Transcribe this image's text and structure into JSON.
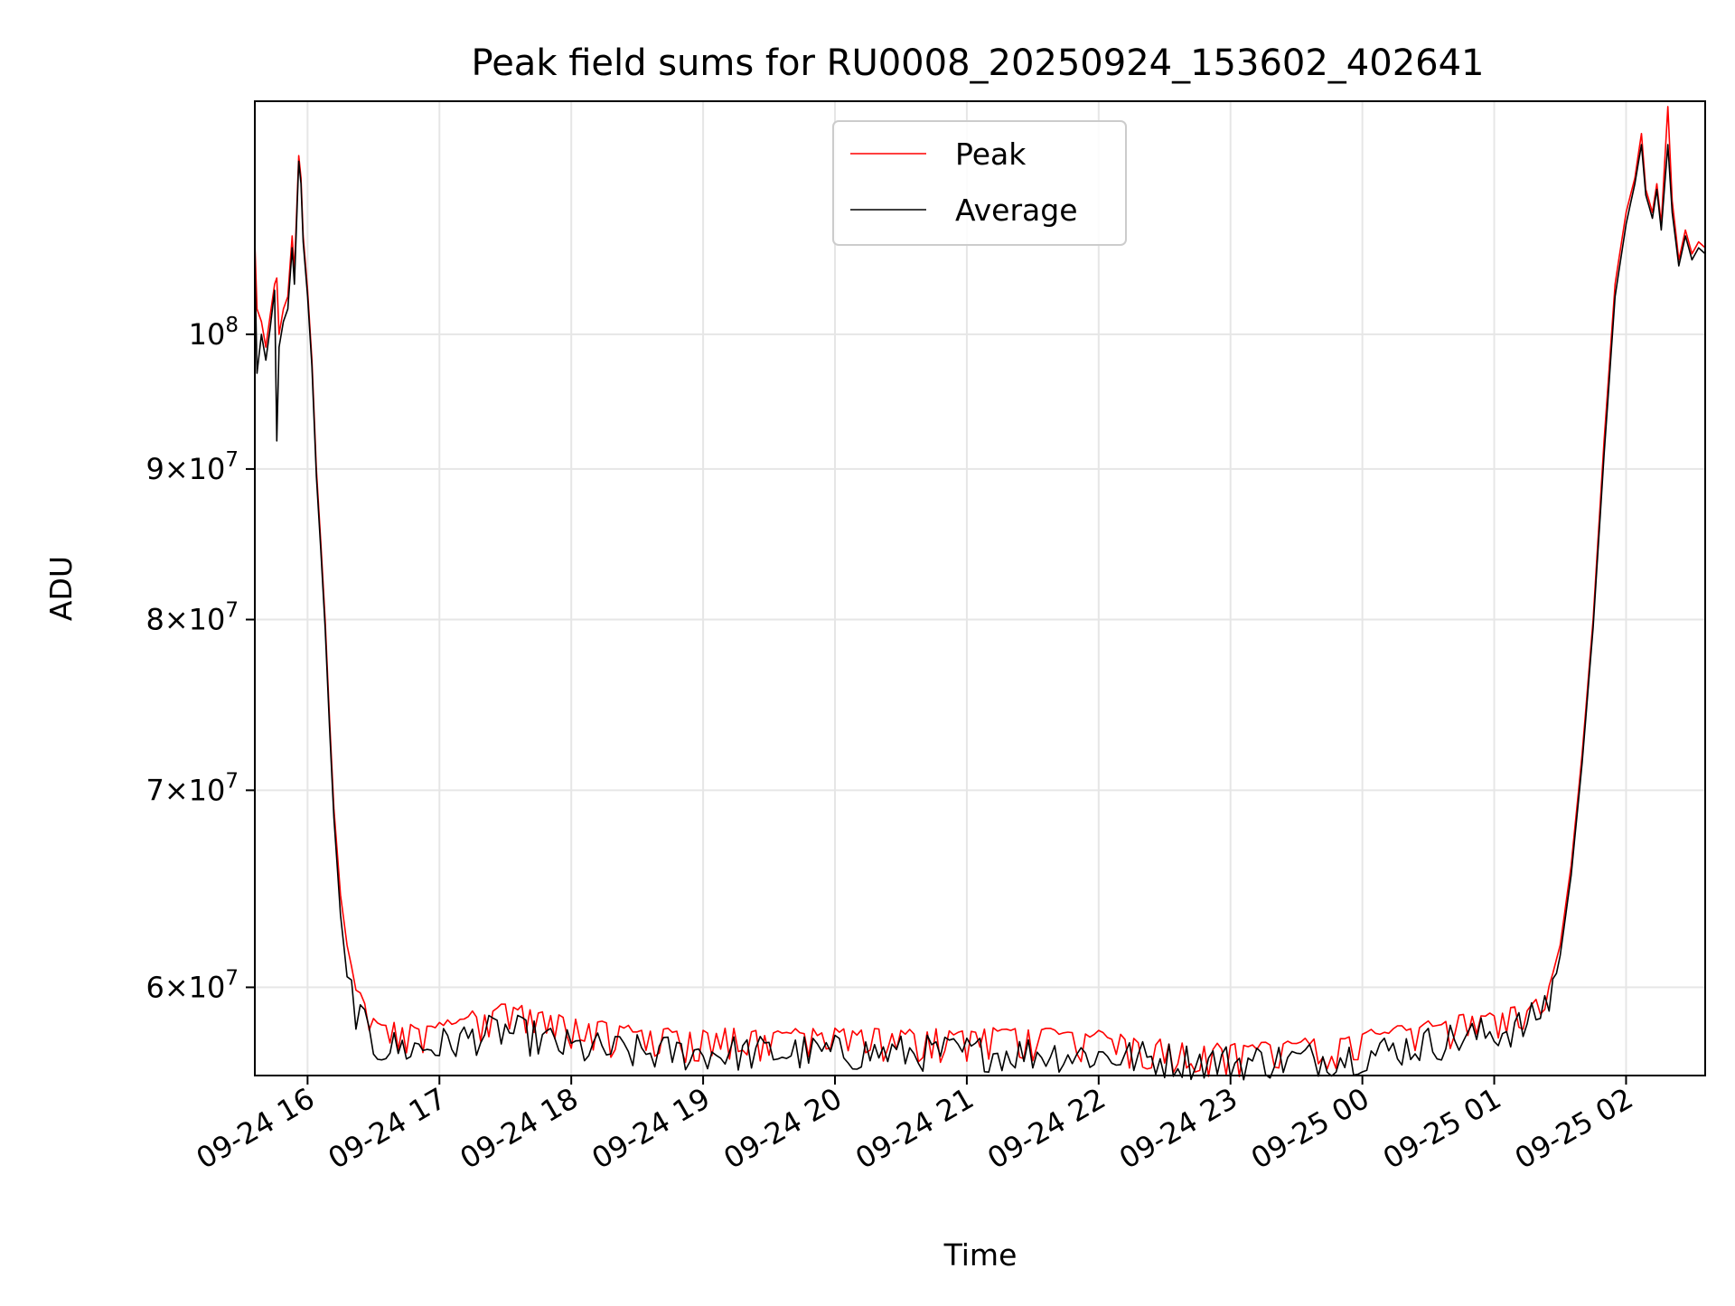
{
  "chart_data": {
    "type": "line",
    "title": "Peak field sums for RU0008_20250924_153602_402641",
    "xlabel": "Time",
    "ylabel": "ADU",
    "y_scale": "log",
    "grid": true,
    "legend_position": "top-center",
    "xlim": [
      "2025-09-24 15:36",
      "2025-09-25 02:36"
    ],
    "ylim": [
      56000000,
      120000000
    ],
    "x_ticks": [
      {
        "value": "2025-09-24 16:00",
        "label": "09-24 16"
      },
      {
        "value": "2025-09-24 17:00",
        "label": "09-24 17"
      },
      {
        "value": "2025-09-24 18:00",
        "label": "09-24 18"
      },
      {
        "value": "2025-09-24 19:00",
        "label": "09-24 19"
      },
      {
        "value": "2025-09-24 20:00",
        "label": "09-24 20"
      },
      {
        "value": "2025-09-24 21:00",
        "label": "09-24 21"
      },
      {
        "value": "2025-09-24 22:00",
        "label": "09-24 22"
      },
      {
        "value": "2025-09-24 23:00",
        "label": "09-24 23"
      },
      {
        "value": "2025-09-25 00:00",
        "label": "09-25 00"
      },
      {
        "value": "2025-09-25 01:00",
        "label": "09-25 01"
      },
      {
        "value": "2025-09-25 02:00",
        "label": "09-25 02"
      }
    ],
    "y_ticks": [
      {
        "value": 60000000,
        "mantissa": "6",
        "exponent": "7"
      },
      {
        "value": 70000000,
        "mantissa": "7",
        "exponent": "7"
      },
      {
        "value": 80000000,
        "mantissa": "8",
        "exponent": "7"
      },
      {
        "value": 90000000,
        "mantissa": "9",
        "exponent": "7"
      },
      {
        "value": 100000000,
        "mantissa": "",
        "exponent": "8"
      }
    ],
    "series": [
      {
        "name": "Peak",
        "color": "#ff0000",
        "points": [
          [
            "2025-09-24 15:36",
            107500000
          ],
          [
            "2025-09-24 15:37",
            102000000
          ],
          [
            "2025-09-24 15:39",
            101000000
          ],
          [
            "2025-09-24 15:41",
            99000000
          ],
          [
            "2025-09-24 15:43",
            101500000
          ],
          [
            "2025-09-24 15:45",
            104000000
          ],
          [
            "2025-09-24 15:46",
            104500000
          ],
          [
            "2025-09-24 15:47",
            100000000
          ],
          [
            "2025-09-24 15:49",
            102000000
          ],
          [
            "2025-09-24 15:51",
            103000000
          ],
          [
            "2025-09-24 15:53",
            108000000
          ],
          [
            "2025-09-24 15:54",
            105000000
          ],
          [
            "2025-09-24 15:56",
            115000000
          ],
          [
            "2025-09-24 15:57",
            113000000
          ],
          [
            "2025-09-24 15:58",
            108000000
          ],
          [
            "2025-09-24 16:00",
            103500000
          ],
          [
            "2025-09-24 16:02",
            98000000
          ],
          [
            "2025-09-24 16:04",
            90000000
          ],
          [
            "2025-09-24 16:06",
            85000000
          ],
          [
            "2025-09-24 16:08",
            80000000
          ],
          [
            "2025-09-24 16:10",
            74000000
          ],
          [
            "2025-09-24 16:12",
            69000000
          ],
          [
            "2025-09-24 16:15",
            64500000
          ],
          [
            "2025-09-24 16:18",
            62000000
          ],
          [
            "2025-09-24 16:22",
            60000000
          ],
          [
            "2025-09-24 16:30",
            58500000
          ],
          [
            "2025-09-24 16:45",
            58200000
          ],
          [
            "2025-09-24 17:00",
            58300000
          ],
          [
            "2025-09-24 17:15",
            58800000
          ],
          [
            "2025-09-24 17:30",
            59200000
          ],
          [
            "2025-09-24 17:45",
            58900000
          ],
          [
            "2025-09-24 18:00",
            58500000
          ],
          [
            "2025-09-24 18:30",
            58100000
          ],
          [
            "2025-09-24 19:00",
            58000000
          ],
          [
            "2025-09-24 19:30",
            58000000
          ],
          [
            "2025-09-24 20:00",
            58000000
          ],
          [
            "2025-09-24 20:30",
            58000000
          ],
          [
            "2025-09-24 21:00",
            58000000
          ],
          [
            "2025-09-24 21:30",
            58100000
          ],
          [
            "2025-09-24 22:00",
            57900000
          ],
          [
            "2025-09-24 22:30",
            57500000
          ],
          [
            "2025-09-24 23:00",
            57300000
          ],
          [
            "2025-09-24 23:30",
            57500000
          ],
          [
            "2025-09-25 00:00",
            57900000
          ],
          [
            "2025-09-25 00:30",
            58400000
          ],
          [
            "2025-09-25 01:00",
            58900000
          ],
          [
            "2025-09-25 01:15",
            59100000
          ],
          [
            "2025-09-25 01:25",
            60000000
          ],
          [
            "2025-09-25 01:30",
            62000000
          ],
          [
            "2025-09-25 01:35",
            66000000
          ],
          [
            "2025-09-25 01:40",
            72000000
          ],
          [
            "2025-09-25 01:45",
            80000000
          ],
          [
            "2025-09-25 01:50",
            92000000
          ],
          [
            "2025-09-25 01:55",
            104000000
          ],
          [
            "2025-09-25 02:00",
            110000000
          ],
          [
            "2025-09-25 02:04",
            113000000
          ],
          [
            "2025-09-25 02:07",
            117000000
          ],
          [
            "2025-09-25 02:09",
            112000000
          ],
          [
            "2025-09-25 02:12",
            110000000
          ],
          [
            "2025-09-25 02:14",
            112500000
          ],
          [
            "2025-09-25 02:16",
            109000000
          ],
          [
            "2025-09-25 02:19",
            119500000
          ],
          [
            "2025-09-25 02:21",
            111000000
          ],
          [
            "2025-09-25 02:24",
            106000000
          ],
          [
            "2025-09-25 02:27",
            108500000
          ],
          [
            "2025-09-25 02:30",
            106500000
          ],
          [
            "2025-09-25 02:33",
            107500000
          ],
          [
            "2025-09-25 02:36",
            107000000
          ]
        ]
      },
      {
        "name": "Average",
        "color": "#000000",
        "points": [
          [
            "2025-09-24 15:36",
            106000000
          ],
          [
            "2025-09-24 15:37",
            97000000
          ],
          [
            "2025-09-24 15:39",
            100000000
          ],
          [
            "2025-09-24 15:41",
            98000000
          ],
          [
            "2025-09-24 15:43",
            100500000
          ],
          [
            "2025-09-24 15:45",
            103500000
          ],
          [
            "2025-09-24 15:46",
            92000000
          ],
          [
            "2025-09-24 15:47",
            99000000
          ],
          [
            "2025-09-24 15:49",
            101000000
          ],
          [
            "2025-09-24 15:51",
            102000000
          ],
          [
            "2025-09-24 15:53",
            107000000
          ],
          [
            "2025-09-24 15:54",
            104000000
          ],
          [
            "2025-09-24 15:56",
            114500000
          ],
          [
            "2025-09-24 15:57",
            112500000
          ],
          [
            "2025-09-24 15:58",
            107500000
          ],
          [
            "2025-09-24 16:00",
            103000000
          ],
          [
            "2025-09-24 16:02",
            97500000
          ],
          [
            "2025-09-24 16:04",
            89500000
          ],
          [
            "2025-09-24 16:06",
            84500000
          ],
          [
            "2025-09-24 16:08",
            79500000
          ],
          [
            "2025-09-24 16:10",
            73500000
          ],
          [
            "2025-09-24 16:12",
            68500000
          ],
          [
            "2025-09-24 16:15",
            63500000
          ],
          [
            "2025-09-24 16:18",
            60500000
          ],
          [
            "2025-09-24 16:22",
            58500000
          ],
          [
            "2025-09-24 16:30",
            56900000
          ],
          [
            "2025-09-24 16:45",
            56800000
          ],
          [
            "2025-09-24 17:00",
            56900000
          ],
          [
            "2025-09-24 17:15",
            57300000
          ],
          [
            "2025-09-24 17:30",
            57600000
          ],
          [
            "2025-09-24 17:45",
            57200000
          ],
          [
            "2025-09-24 18:00",
            56800000
          ],
          [
            "2025-09-24 18:30",
            56600000
          ],
          [
            "2025-09-24 19:00",
            56600000
          ],
          [
            "2025-09-24 19:30",
            56600000
          ],
          [
            "2025-09-24 20:00",
            56600000
          ],
          [
            "2025-09-24 20:30",
            56600000
          ],
          [
            "2025-09-24 21:00",
            56600000
          ],
          [
            "2025-09-24 21:30",
            56600000
          ],
          [
            "2025-09-24 22:00",
            56500000
          ],
          [
            "2025-09-24 22:30",
            56300000
          ],
          [
            "2025-09-24 23:00",
            56200000
          ],
          [
            "2025-09-24 23:30",
            56300000
          ],
          [
            "2025-09-25 00:00",
            56500000
          ],
          [
            "2025-09-25 00:30",
            57000000
          ],
          [
            "2025-09-25 01:00",
            57500000
          ],
          [
            "2025-09-25 01:15",
            57800000
          ],
          [
            "2025-09-25 01:25",
            59000000
          ],
          [
            "2025-09-25 01:30",
            61500000
          ],
          [
            "2025-09-25 01:35",
            65500000
          ],
          [
            "2025-09-25 01:40",
            71500000
          ],
          [
            "2025-09-25 01:45",
            79500000
          ],
          [
            "2025-09-25 01:50",
            91000000
          ],
          [
            "2025-09-25 01:55",
            103000000
          ],
          [
            "2025-09-25 02:00",
            109000000
          ],
          [
            "2025-09-25 02:04",
            112500000
          ],
          [
            "2025-09-25 02:07",
            116000000
          ],
          [
            "2025-09-25 02:09",
            111500000
          ],
          [
            "2025-09-25 02:12",
            109500000
          ],
          [
            "2025-09-25 02:14",
            112000000
          ],
          [
            "2025-09-25 02:16",
            108500000
          ],
          [
            "2025-09-25 02:19",
            116000000
          ],
          [
            "2025-09-25 02:21",
            110000000
          ],
          [
            "2025-09-25 02:24",
            105500000
          ],
          [
            "2025-09-25 02:27",
            108000000
          ],
          [
            "2025-09-25 02:30",
            106000000
          ],
          [
            "2025-09-25 02:33",
            107000000
          ],
          [
            "2025-09-25 02:36",
            106500000
          ]
        ]
      }
    ]
  }
}
